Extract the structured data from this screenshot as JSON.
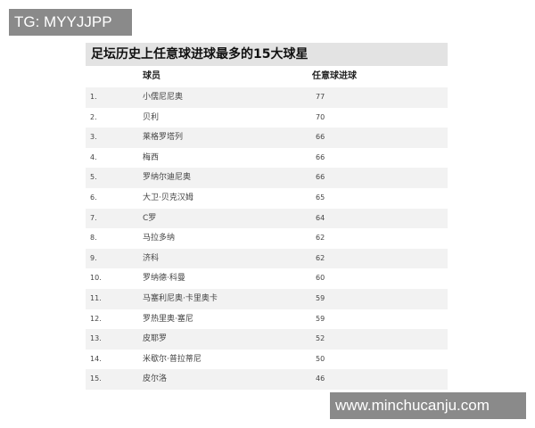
{
  "watermarks": {
    "top_left": "TG: MYYJJPP",
    "bottom_right": "www.minchucanju.com"
  },
  "table": {
    "title": "足坛历史上任意球进球最多的15大球星",
    "headers": {
      "rank": "",
      "player": "球员",
      "goals": "任意球进球"
    },
    "rows": [
      {
        "rank": "1.",
        "player": "小儒尼尼奥",
        "goals": "77"
      },
      {
        "rank": "2.",
        "player": "贝利",
        "goals": "70"
      },
      {
        "rank": "3.",
        "player": "莱格罗塔列",
        "goals": "66"
      },
      {
        "rank": "4.",
        "player": "梅西",
        "goals": "66"
      },
      {
        "rank": "5.",
        "player": "罗纳尔迪尼奥",
        "goals": "66"
      },
      {
        "rank": "6.",
        "player": "大卫·贝克汉姆",
        "goals": "65"
      },
      {
        "rank": "7.",
        "player": "C罗",
        "goals": "64"
      },
      {
        "rank": "8.",
        "player": "马拉多纳",
        "goals": "62"
      },
      {
        "rank": "9.",
        "player": "济科",
        "goals": "62"
      },
      {
        "rank": "10.",
        "player": "罗纳德·科曼",
        "goals": "60"
      },
      {
        "rank": "11.",
        "player": "马塞利尼奥·卡里奥卡",
        "goals": "59"
      },
      {
        "rank": "12.",
        "player": "罗热里奥·塞尼",
        "goals": "59"
      },
      {
        "rank": "13.",
        "player": "皮耶罗",
        "goals": "52"
      },
      {
        "rank": "14.",
        "player": "米歇尔·普拉蒂尼",
        "goals": "50"
      },
      {
        "rank": "15.",
        "player": "皮尔洛",
        "goals": "46"
      }
    ]
  }
}
